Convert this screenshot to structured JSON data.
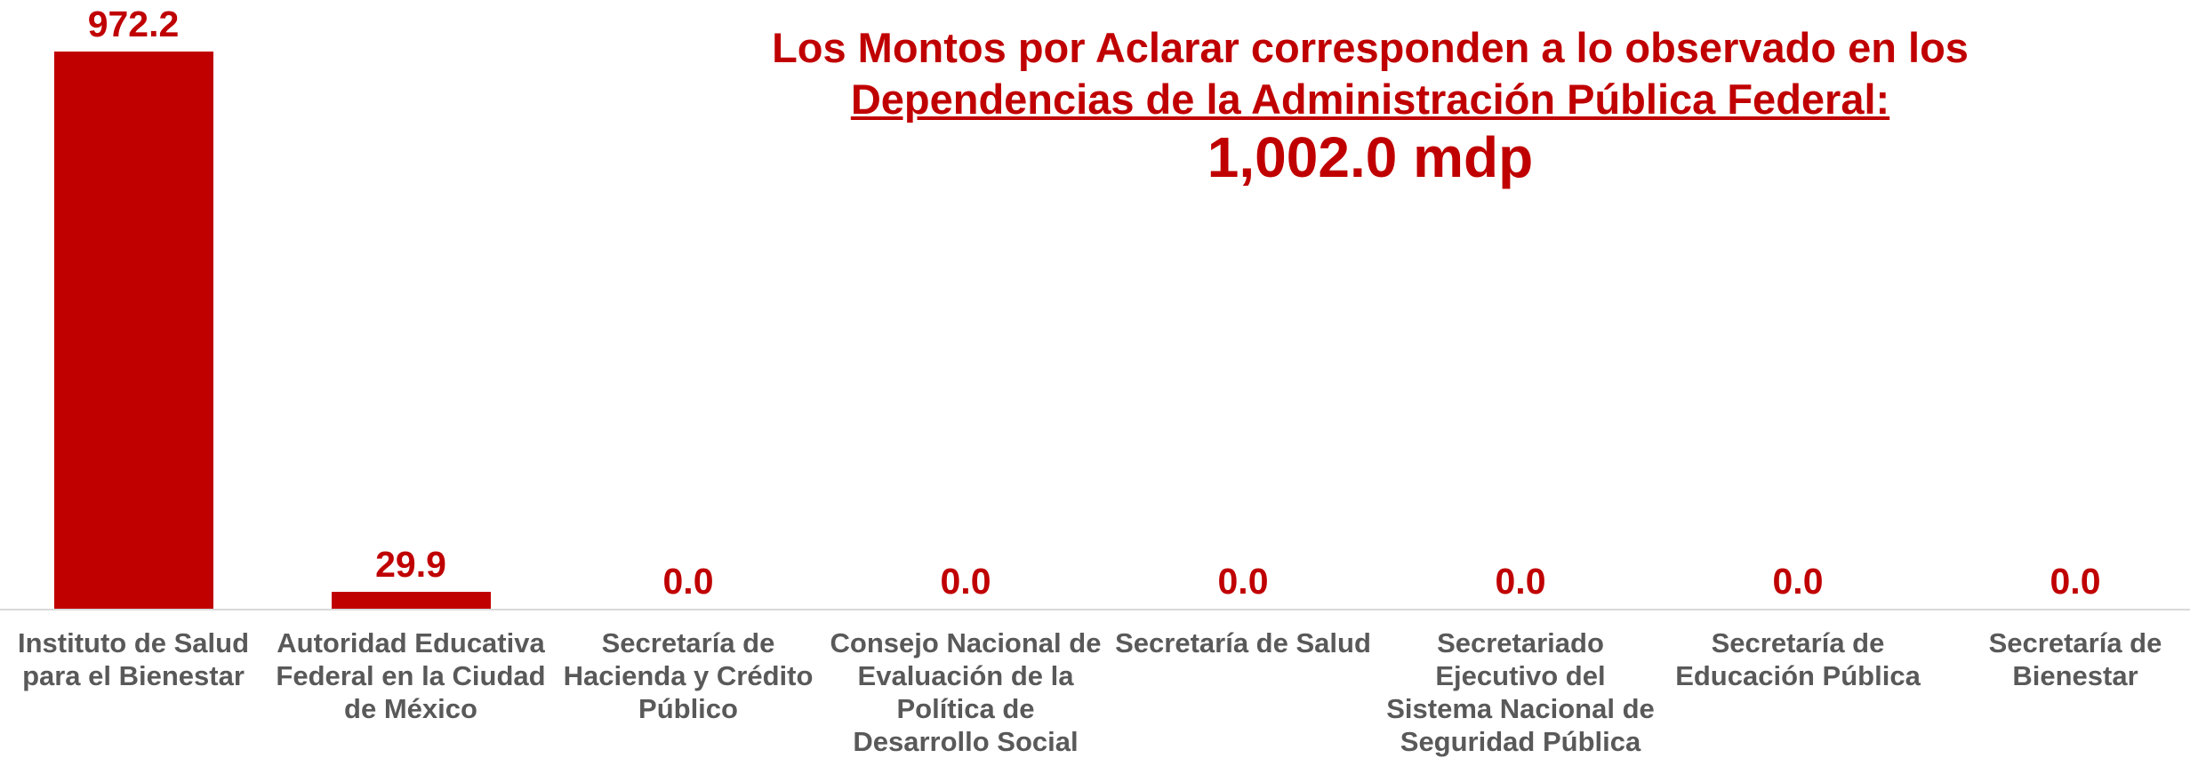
{
  "chart_data": {
    "type": "bar",
    "title": "Los Montos por Aclarar corresponden a lo observado en los",
    "subtitle": "Dependencias de la Administración Pública Federal:",
    "annotation": "1,002.0 mdp",
    "categories": [
      "Instituto de Salud para el Bienestar",
      "Autoridad Educativa Federal en la Ciudad de México",
      "Secretaría de Hacienda y Crédito Público",
      "Consejo Nacional de Evaluación de la Política de Desarrollo Social",
      "Secretaría de Salud",
      "Secretariado Ejecutivo del Sistema Nacional de Seguridad Pública",
      "Secretaría de Educación Pública",
      "Secretaría de Bienestar"
    ],
    "values": [
      972.2,
      29.9,
      0,
      0,
      0,
      0,
      0,
      0
    ],
    "value_labels": [
      "972.2",
      "29.9",
      "0.0",
      "0.0",
      "0.0",
      "0.0",
      "0.0",
      "0.0"
    ],
    "color": "#c00000"
  }
}
